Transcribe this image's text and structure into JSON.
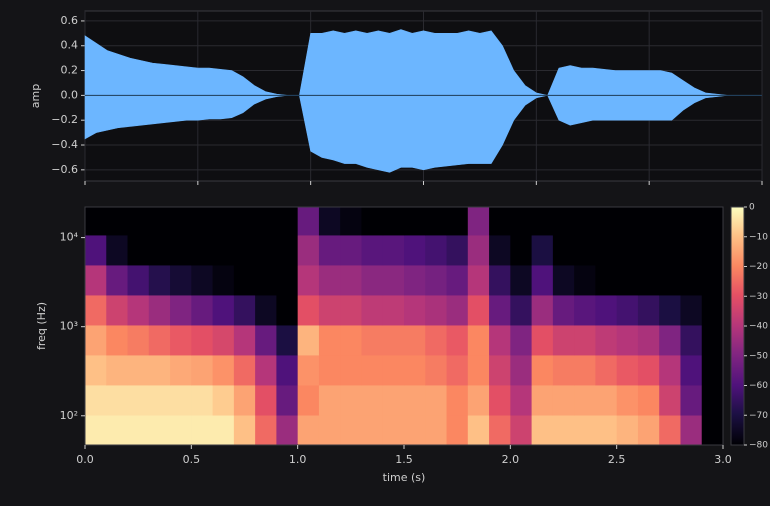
{
  "chart_data": [
    {
      "type": "area",
      "ylabel": "amp",
      "color": "#6cb6ff",
      "x": [
        0,
        0.05,
        0.1,
        0.15,
        0.2,
        0.25,
        0.3,
        0.35,
        0.4,
        0.45,
        0.5,
        0.55,
        0.6,
        0.65,
        0.7,
        0.75,
        0.8,
        0.85,
        0.9,
        0.95,
        1.0,
        1.05,
        1.1,
        1.15,
        1.2,
        1.25,
        1.3,
        1.35,
        1.4,
        1.45,
        1.5,
        1.55,
        1.6,
        1.65,
        1.7,
        1.75,
        1.8,
        1.85,
        1.9,
        1.95,
        2.0,
        2.05,
        2.1,
        2.15,
        2.2,
        2.25,
        2.3,
        2.35,
        2.4,
        2.45,
        2.5,
        2.55,
        2.6,
        2.65,
        2.7,
        2.75,
        2.8,
        2.85,
        2.9,
        2.95,
        3.0
      ],
      "upper": [
        0.48,
        0.42,
        0.36,
        0.33,
        0.3,
        0.28,
        0.26,
        0.25,
        0.24,
        0.23,
        0.22,
        0.22,
        0.21,
        0.2,
        0.15,
        0.08,
        0.03,
        0.01,
        0,
        0,
        0.5,
        0.5,
        0.52,
        0.5,
        0.52,
        0.5,
        0.52,
        0.5,
        0.53,
        0.5,
        0.52,
        0.5,
        0.5,
        0.5,
        0.52,
        0.5,
        0.52,
        0.4,
        0.2,
        0.08,
        0.02,
        0,
        0.22,
        0.24,
        0.22,
        0.22,
        0.21,
        0.2,
        0.2,
        0.2,
        0.2,
        0.2,
        0.18,
        0.12,
        0.06,
        0.02,
        0.01,
        0,
        0,
        0,
        0
      ],
      "lower": [
        -0.35,
        -0.3,
        -0.28,
        -0.26,
        -0.25,
        -0.24,
        -0.23,
        -0.22,
        -0.21,
        -0.2,
        -0.2,
        -0.19,
        -0.19,
        -0.18,
        -0.14,
        -0.07,
        -0.03,
        -0.01,
        0,
        0,
        -0.45,
        -0.5,
        -0.52,
        -0.55,
        -0.55,
        -0.58,
        -0.6,
        -0.62,
        -0.58,
        -0.58,
        -0.6,
        -0.58,
        -0.57,
        -0.56,
        -0.55,
        -0.55,
        -0.55,
        -0.4,
        -0.2,
        -0.08,
        -0.02,
        0,
        -0.2,
        -0.24,
        -0.22,
        -0.2,
        -0.2,
        -0.2,
        -0.2,
        -0.2,
        -0.2,
        -0.2,
        -0.2,
        -0.12,
        -0.06,
        -0.02,
        -0.01,
        0,
        0,
        0,
        0
      ],
      "xlim": [
        0,
        3
      ],
      "xticks": [
        0,
        0.5,
        1,
        1.5,
        2,
        2.5,
        3
      ],
      "ylim": [
        -0.69,
        0.68
      ],
      "yticks": [
        0.6,
        0.4,
        0.2,
        {
          "value": 0,
          "label": "0.0"
        },
        {
          "value": -0.2,
          "label": "−0.2"
        },
        {
          "value": -0.4,
          "label": "−0.4"
        },
        {
          "value": -0.6,
          "label": "−0.6"
        }
      ],
      "grid": true
    },
    {
      "type": "heatmap",
      "xlabel": "time (s)",
      "ylabel": "freq (Hz)",
      "colormap": "magma",
      "log_y": true,
      "xlim": [
        0,
        3
      ],
      "xticks": [
        {
          "value": 0,
          "label": "0.0"
        },
        0.5,
        {
          "value": 1,
          "label": "1.0"
        },
        1.5,
        {
          "value": 2,
          "label": "2.0"
        },
        2.5,
        {
          "value": 3,
          "label": "3.0"
        }
      ],
      "ylim": [
        47,
        22050
      ],
      "yticks": [
        {
          "value": 100,
          "label": "10²"
        },
        {
          "value": 1000,
          "label": "10³"
        },
        {
          "value": 10000,
          "label": "10⁴"
        }
      ],
      "xbins": [
        0,
        0.1,
        0.2,
        0.3,
        0.4,
        0.5,
        0.6,
        0.7,
        0.8,
        0.9,
        1.0,
        1.1,
        1.2,
        1.3,
        1.4,
        1.5,
        1.6,
        1.7,
        1.8,
        1.9,
        2.0,
        2.1,
        2.2,
        2.3,
        2.4,
        2.5,
        2.6,
        2.7,
        2.8,
        2.9,
        3.0
      ],
      "ybins": [
        47,
        102,
        222,
        482,
        1046,
        2272,
        4934,
        10714,
        22050
      ],
      "z": [
        [
          -3,
          -3,
          -3,
          -3,
          -3,
          -3,
          -3,
          -10,
          -25,
          -45,
          -15,
          -15,
          -15,
          -15,
          -15,
          -15,
          -15,
          -20,
          -10,
          -25,
          -35,
          -10,
          -10,
          -10,
          -10,
          -12,
          -15,
          -25,
          -45,
          -80
        ],
        [
          -5,
          -5,
          -5,
          -5,
          -5,
          -5,
          -8,
          -15,
          -30,
          -55,
          -20,
          -15,
          -15,
          -15,
          -15,
          -15,
          -15,
          -20,
          -15,
          -30,
          -40,
          -15,
          -15,
          -15,
          -15,
          -18,
          -20,
          -35,
          -55,
          -80
        ],
        [
          -10,
          -12,
          -12,
          -12,
          -14,
          -15,
          -18,
          -25,
          -40,
          -60,
          -18,
          -20,
          -20,
          -20,
          -20,
          -20,
          -22,
          -25,
          -20,
          -35,
          -45,
          -20,
          -22,
          -22,
          -25,
          -28,
          -30,
          -40,
          -60,
          -80
        ],
        [
          -15,
          -20,
          -22,
          -25,
          -28,
          -30,
          -33,
          -40,
          -55,
          -70,
          -12,
          -20,
          -20,
          -22,
          -22,
          -22,
          -25,
          -28,
          -20,
          -40,
          -50,
          -30,
          -35,
          -35,
          -38,
          -40,
          -42,
          -50,
          -65,
          -80
        ],
        [
          -25,
          -35,
          -40,
          -45,
          -50,
          -55,
          -60,
          -65,
          -75,
          -80,
          -30,
          -35,
          -35,
          -38,
          -38,
          -40,
          -42,
          -45,
          -30,
          -55,
          -65,
          -45,
          -55,
          -58,
          -60,
          -62,
          -65,
          -70,
          -75,
          -80
        ],
        [
          -40,
          -55,
          -62,
          -68,
          -72,
          -75,
          -78,
          -80,
          -80,
          -80,
          -40,
          -45,
          -45,
          -48,
          -48,
          -50,
          -52,
          -55,
          -40,
          -65,
          -75,
          -60,
          -75,
          -78,
          -80,
          -80,
          -80,
          -80,
          -80,
          -80
        ],
        [
          -60,
          -75,
          -80,
          -80,
          -80,
          -80,
          -80,
          -80,
          -80,
          -80,
          -45,
          -55,
          -55,
          -58,
          -58,
          -60,
          -62,
          -65,
          -45,
          -75,
          -80,
          -70,
          -80,
          -80,
          -80,
          -80,
          -80,
          -80,
          -80,
          -80
        ],
        [
          -80,
          -80,
          -80,
          -80,
          -80,
          -80,
          -80,
          -80,
          -80,
          -80,
          -55,
          -75,
          -78,
          -80,
          -80,
          -80,
          -80,
          -80,
          -50,
          -80,
          -80,
          -80,
          -80,
          -80,
          -80,
          -80,
          -80,
          -80,
          -80,
          -80
        ]
      ],
      "colorbar": {
        "lim": [
          -80,
          0
        ],
        "ticks": [
          0,
          {
            "value": -10,
            "label": "−10"
          },
          {
            "value": -20,
            "label": "−20"
          },
          {
            "value": -30,
            "label": "−30"
          },
          {
            "value": -40,
            "label": "−40"
          },
          {
            "value": -50,
            "label": "−50"
          },
          {
            "value": -60,
            "label": "−60"
          },
          {
            "value": -70,
            "label": "−70"
          },
          {
            "value": -80,
            "label": "−80"
          }
        ]
      }
    }
  ]
}
